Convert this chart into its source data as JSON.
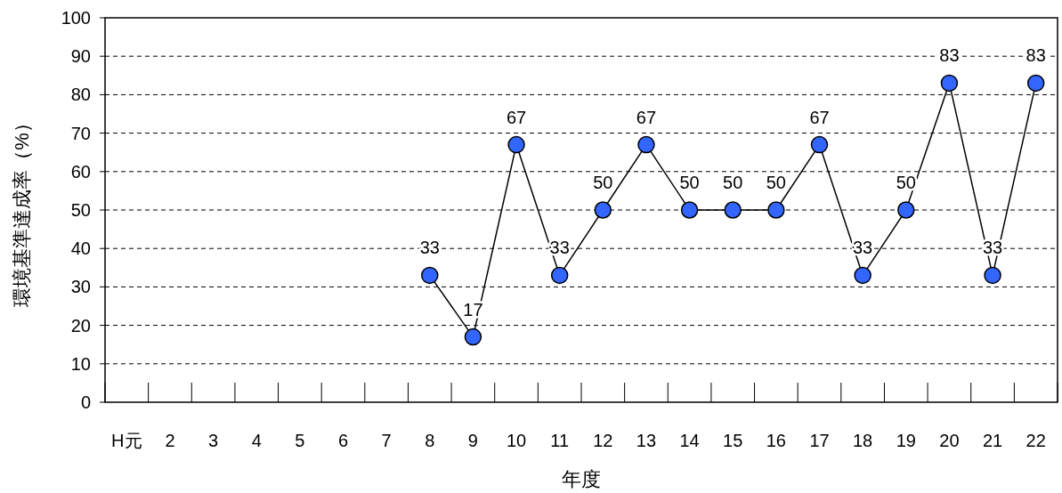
{
  "chart_data": {
    "type": "line",
    "xlabel": "年度",
    "ylabel": "環境基準達成率（%）",
    "categories": [
      "H元",
      "2",
      "3",
      "4",
      "5",
      "6",
      "7",
      "8",
      "9",
      "10",
      "11",
      "12",
      "13",
      "14",
      "15",
      "16",
      "17",
      "18",
      "19",
      "20",
      "21",
      "22"
    ],
    "series": [
      {
        "color": "#3366ff",
        "values": [
          null,
          null,
          null,
          null,
          null,
          null,
          null,
          33,
          17,
          67,
          33,
          50,
          67,
          50,
          50,
          50,
          67,
          33,
          50,
          83,
          33,
          83
        ]
      }
    ],
    "ylim": [
      0,
      100
    ],
    "yticks": [
      0,
      10,
      20,
      30,
      40,
      50,
      60,
      70,
      80,
      90,
      100
    ],
    "grid": "y",
    "marker": "circle",
    "line_style": "solid",
    "data_labels": true
  }
}
